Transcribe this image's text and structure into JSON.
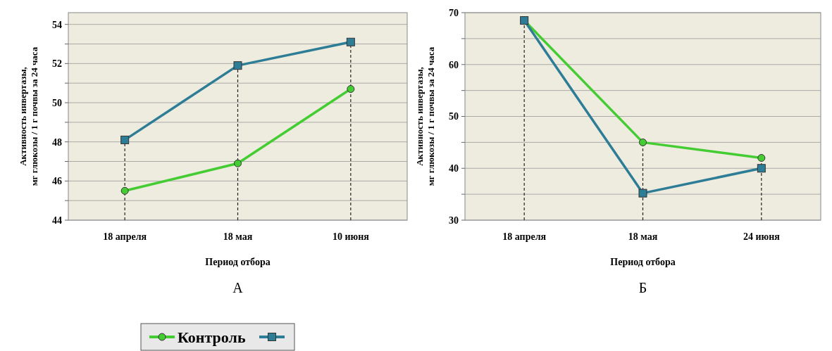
{
  "chart_data": [
    {
      "type": "line",
      "categories": [
        "18 апреля",
        "18 мая",
        "10 июня"
      ],
      "xlabel": "Период отбора",
      "ylabel": "Активность инвертазы,\nмг глюкозы / 1 г почвы за 24 часа",
      "annotations": [
        "А"
      ],
      "ylim": [
        44,
        54.6
      ],
      "yticks": [
        44,
        {
          "value": 45,
          "label": null
        },
        46,
        {
          "value": 47,
          "label": null
        },
        48,
        {
          "value": 49,
          "label": null
        },
        50,
        {
          "value": 51,
          "label": null
        },
        52,
        {
          "value": 53,
          "label": null
        },
        54
      ],
      "grid": "y",
      "legend": "bottom left",
      "ref_lines": [
        {
          "axis": "x",
          "value": "18 апреля",
          "line_style": "dashed"
        },
        {
          "axis": "x",
          "value": "18 мая",
          "line_style": "dashed"
        },
        {
          "axis": "x",
          "value": "10 июня",
          "line_style": "dashed"
        }
      ],
      "series": [
        {
          "name": "Контроль",
          "color": "#44cc33",
          "marker": "circle",
          "values": [
            45.5,
            46.9,
            50.7
          ]
        },
        {
          "color": "#2e7d96",
          "marker": "square",
          "values": [
            48.1,
            51.9,
            53.1
          ]
        }
      ]
    },
    {
      "type": "line",
      "categories": [
        "18 апреля",
        "18 мая",
        "24 июня"
      ],
      "xlabel": "Период отбора",
      "ylabel": "Активность инвертазы,\nмг глюкозы / 1 г почвы за 24 часа",
      "annotations": [
        "Б"
      ],
      "ylim": [
        30,
        70
      ],
      "yticks": [
        30,
        {
          "value": 35,
          "label": null
        },
        40,
        {
          "value": 45,
          "label": null
        },
        50,
        {
          "value": 55,
          "label": null
        },
        60,
        {
          "value": 65,
          "label": null
        },
        70
      ],
      "grid": "y",
      "ref_lines": [
        {
          "axis": "x",
          "value": "18 апреля",
          "line_style": "dashed"
        },
        {
          "axis": "x",
          "value": "18 мая",
          "line_style": "dashed"
        },
        {
          "axis": "x",
          "value": "24 июня",
          "line_style": "dashed"
        }
      ],
      "series": [
        {
          "color": "#44cc33",
          "marker": "circle",
          "values": [
            68.5,
            45,
            42
          ]
        },
        {
          "color": "#2e7d96",
          "marker": "square",
          "values": [
            68.5,
            35.2,
            40
          ]
        }
      ]
    }
  ]
}
